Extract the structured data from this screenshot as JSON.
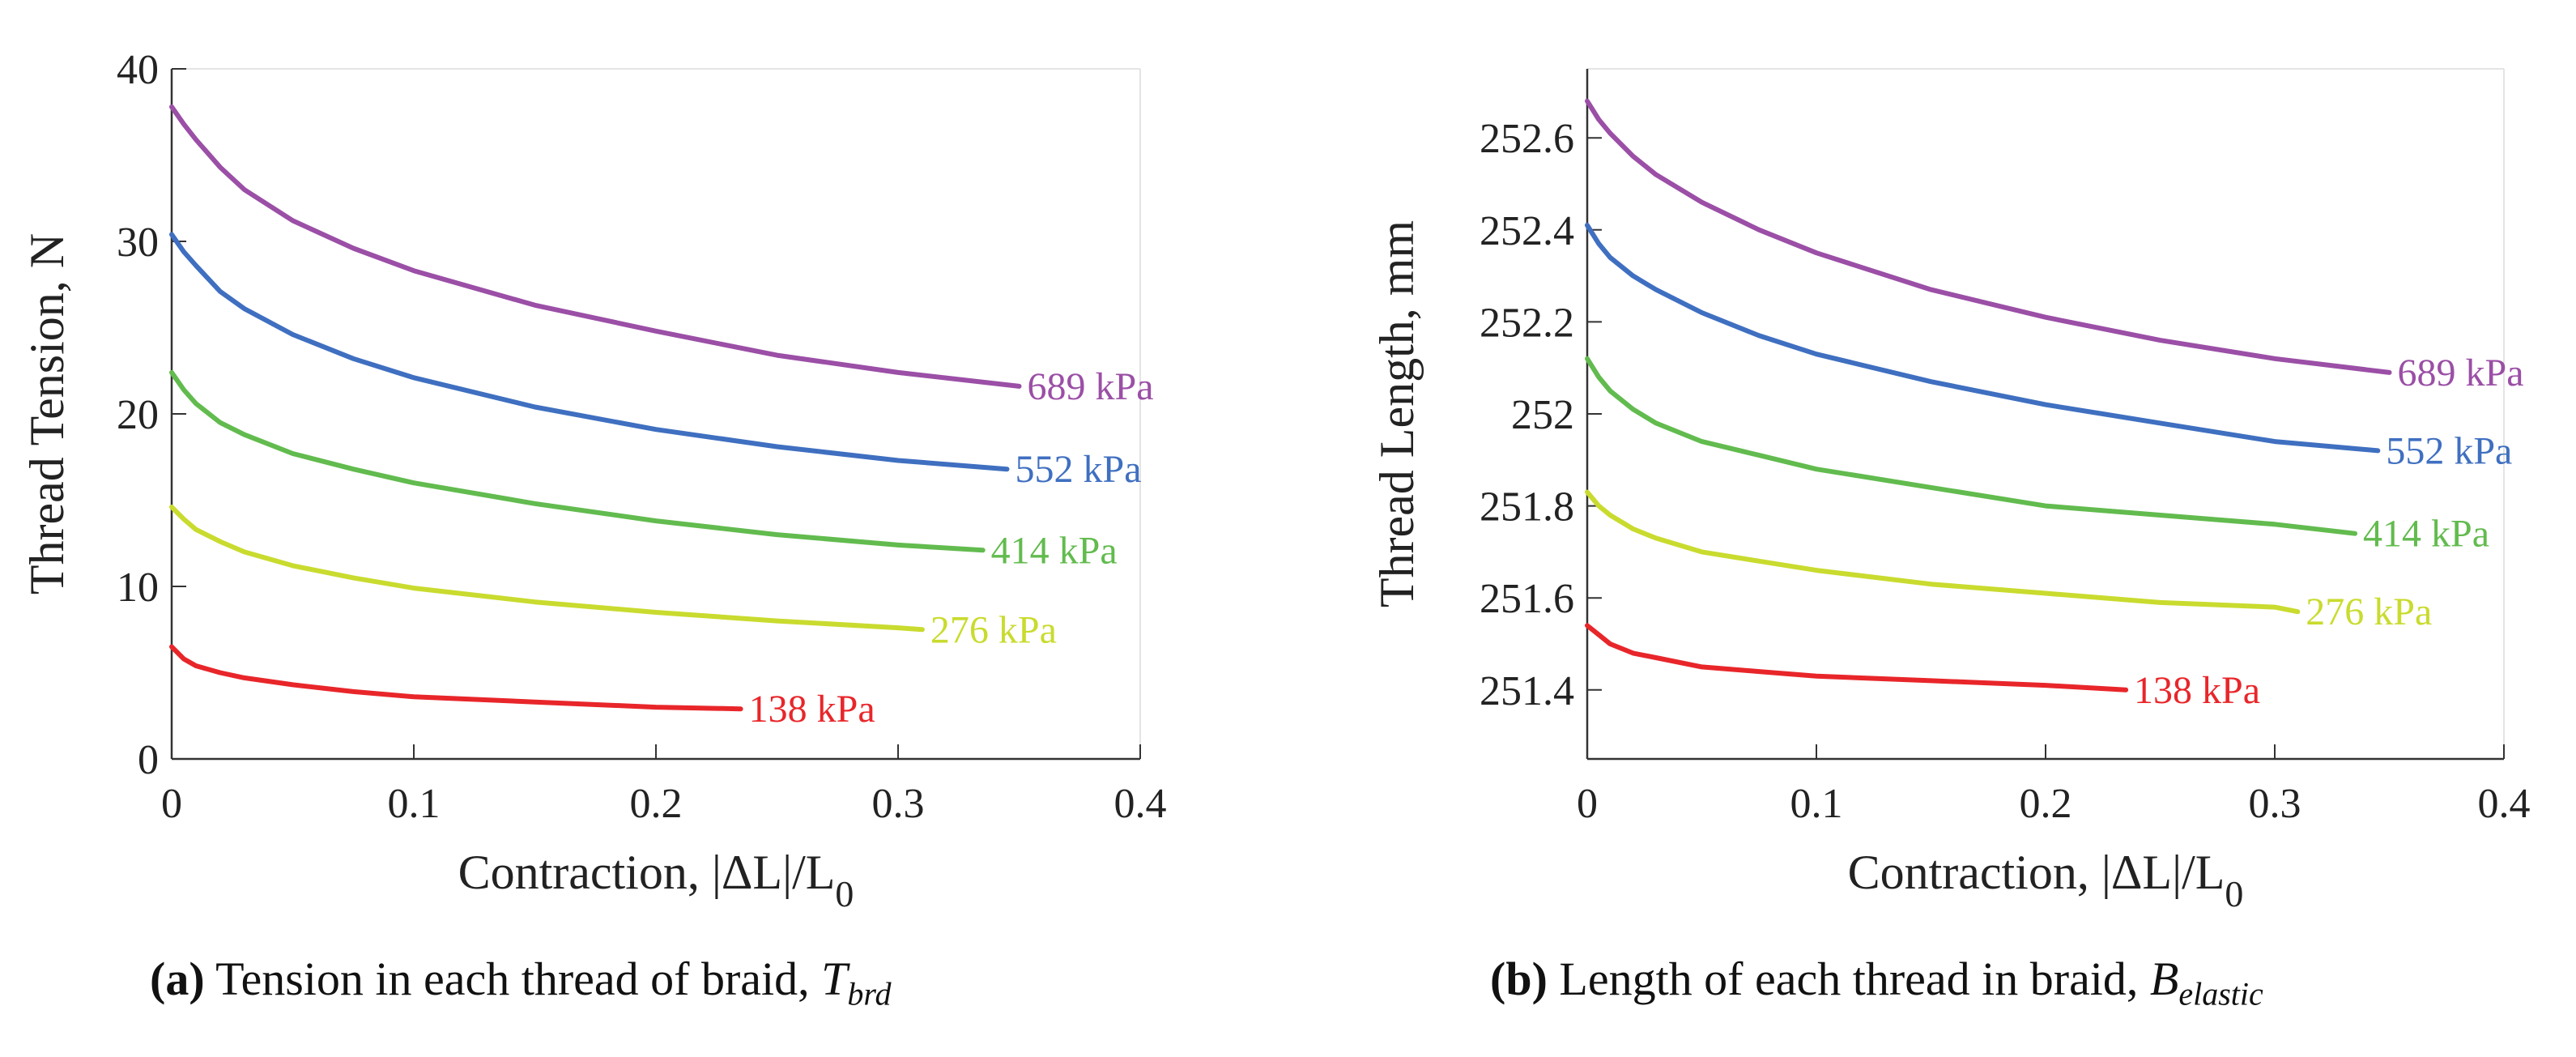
{
  "chart_data": [
    {
      "type": "line",
      "caption_tag": "(a)",
      "caption_text": "Tension in each thread of braid,",
      "caption_symbol": "T",
      "caption_subscript": "brd",
      "xlabel": "Contraction, |ΔL|/L",
      "xlabel_subscript": "0",
      "ylabel": "Thread Tension, N",
      "xlim": [
        0,
        0.4
      ],
      "ylim": [
        0,
        40
      ],
      "xticks": [
        0,
        0.1,
        0.2,
        0.3,
        0.4
      ],
      "xtick_labels": [
        "0",
        "0.1",
        "0.2",
        "0.3",
        "0.4"
      ],
      "yticks": [
        0,
        10,
        20,
        30,
        40
      ],
      "ytick_labels": [
        "0",
        "10",
        "20",
        "30",
        "40"
      ],
      "series": [
        {
          "name": "689 kPa",
          "color": "#9B4FA6",
          "x": [
            0,
            0.005,
            0.01,
            0.02,
            0.03,
            0.05,
            0.075,
            0.1,
            0.15,
            0.2,
            0.25,
            0.3,
            0.35
          ],
          "y": [
            37.8,
            36.8,
            35.9,
            34.3,
            33.0,
            31.2,
            29.6,
            28.3,
            26.3,
            24.8,
            23.4,
            22.4,
            21.6
          ]
        },
        {
          "name": "552 kPa",
          "color": "#3F6FC0",
          "x": [
            0,
            0.005,
            0.01,
            0.02,
            0.03,
            0.05,
            0.075,
            0.1,
            0.15,
            0.2,
            0.25,
            0.3,
            0.345
          ],
          "y": [
            30.4,
            29.4,
            28.6,
            27.1,
            26.1,
            24.6,
            23.2,
            22.1,
            20.4,
            19.1,
            18.1,
            17.3,
            16.8
          ]
        },
        {
          "name": "414 kPa",
          "color": "#62BB4E",
          "x": [
            0,
            0.005,
            0.01,
            0.02,
            0.03,
            0.05,
            0.075,
            0.1,
            0.15,
            0.2,
            0.25,
            0.3,
            0.335
          ],
          "y": [
            22.4,
            21.4,
            20.6,
            19.5,
            18.8,
            17.7,
            16.8,
            16.0,
            14.8,
            13.8,
            13.0,
            12.4,
            12.1
          ]
        },
        {
          "name": "276 kPa",
          "color": "#C9DB2E",
          "x": [
            0,
            0.005,
            0.01,
            0.02,
            0.03,
            0.05,
            0.075,
            0.1,
            0.15,
            0.2,
            0.25,
            0.3,
            0.31
          ],
          "y": [
            14.6,
            13.9,
            13.3,
            12.6,
            12.0,
            11.2,
            10.5,
            9.9,
            9.1,
            8.5,
            8.0,
            7.6,
            7.5
          ]
        },
        {
          "name": "138 kPa",
          "color": "#E8262A",
          "x": [
            0,
            0.005,
            0.01,
            0.02,
            0.03,
            0.05,
            0.075,
            0.1,
            0.15,
            0.2,
            0.235
          ],
          "y": [
            6.5,
            5.8,
            5.4,
            5.0,
            4.7,
            4.3,
            3.9,
            3.6,
            3.3,
            3.0,
            2.9
          ]
        }
      ]
    },
    {
      "type": "line",
      "caption_tag": "(b)",
      "caption_text": "Length of each thread in braid,",
      "caption_symbol": "B",
      "caption_subscript": "elastic",
      "xlabel": "Contraction, |ΔL|/L",
      "xlabel_subscript": "0",
      "ylabel": "Thread Length, mm",
      "xlim": [
        0,
        0.4
      ],
      "ylim": [
        251.25,
        252.75
      ],
      "xticks": [
        0,
        0.1,
        0.2,
        0.3,
        0.4
      ],
      "xtick_labels": [
        "0",
        "0.1",
        "0.2",
        "0.3",
        "0.4"
      ],
      "yticks": [
        251.4,
        251.6,
        251.8,
        252.0,
        252.2,
        252.4,
        252.6
      ],
      "ytick_labels": [
        "251.4",
        "251.6",
        "251.8",
        "252",
        "252.2",
        "252.4",
        "252.6"
      ],
      "series": [
        {
          "name": "689 kPa",
          "color": "#9B4FA6",
          "x": [
            0,
            0.005,
            0.01,
            0.02,
            0.03,
            0.05,
            0.075,
            0.1,
            0.15,
            0.2,
            0.25,
            0.3,
            0.35
          ],
          "y": [
            252.68,
            252.64,
            252.61,
            252.56,
            252.52,
            252.46,
            252.4,
            252.35,
            252.27,
            252.21,
            252.16,
            252.12,
            252.09
          ]
        },
        {
          "name": "552 kPa",
          "color": "#3F6FC0",
          "x": [
            0,
            0.005,
            0.01,
            0.02,
            0.03,
            0.05,
            0.075,
            0.1,
            0.15,
            0.2,
            0.25,
            0.3,
            0.345
          ],
          "y": [
            252.41,
            252.37,
            252.34,
            252.3,
            252.27,
            252.22,
            252.17,
            252.13,
            252.07,
            252.02,
            251.98,
            251.94,
            251.92
          ]
        },
        {
          "name": "414 kPa",
          "color": "#62BB4E",
          "x": [
            0,
            0.005,
            0.01,
            0.02,
            0.03,
            0.05,
            0.075,
            0.1,
            0.15,
            0.2,
            0.25,
            0.3,
            0.335
          ],
          "y": [
            252.12,
            252.08,
            252.05,
            252.01,
            251.98,
            251.94,
            251.91,
            251.88,
            251.84,
            251.8,
            251.78,
            251.76,
            251.74
          ]
        },
        {
          "name": "276 kPa",
          "color": "#C9DB2E",
          "x": [
            0,
            0.005,
            0.01,
            0.02,
            0.03,
            0.05,
            0.075,
            0.1,
            0.15,
            0.2,
            0.25,
            0.3,
            0.31
          ],
          "y": [
            251.83,
            251.8,
            251.78,
            251.75,
            251.73,
            251.7,
            251.68,
            251.66,
            251.63,
            251.61,
            251.59,
            251.58,
            251.57
          ]
        },
        {
          "name": "138 kPa",
          "color": "#E8262A",
          "x": [
            0,
            0.005,
            0.01,
            0.02,
            0.03,
            0.05,
            0.075,
            0.1,
            0.15,
            0.2,
            0.235
          ],
          "y": [
            251.54,
            251.52,
            251.5,
            251.48,
            251.47,
            251.45,
            251.44,
            251.43,
            251.42,
            251.41,
            251.4
          ]
        }
      ]
    }
  ]
}
